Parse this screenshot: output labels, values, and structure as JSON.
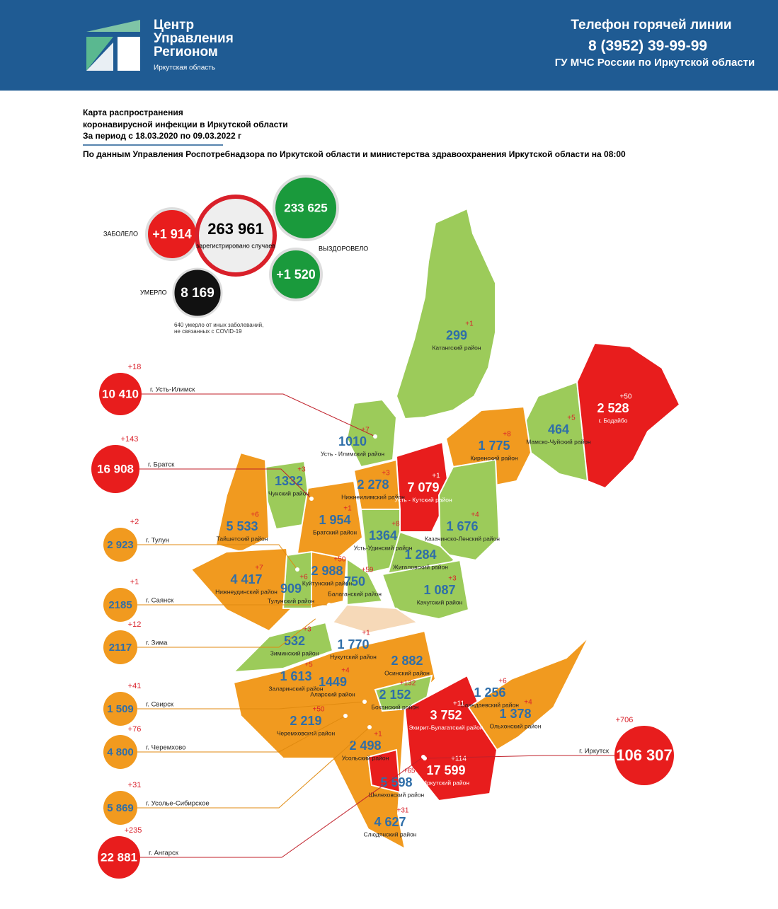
{
  "header": {
    "logo_lines": [
      "Центр",
      "Управления",
      "Регионом"
    ],
    "logo_sub": "Иркутская область",
    "hotline_title": "Телефон горячей линии",
    "hotline_phone": "8 (3952) 39-99-99",
    "hotline_org": "ГУ МЧС России по Иркутской области"
  },
  "intro": {
    "title_lines": [
      "Карта распространения",
      "коронавирусной инфекции в Иркутской области",
      "За период с 18.03.2020 по 09.03.2022 г"
    ],
    "source": "По данным Управления Роспотребнадзора по Иркутской области и министерства здравоохранения Иркутской области на 08:00"
  },
  "summary": {
    "sick_label": "ЗАБОЛЕЛО",
    "sick_delta": "+1 914",
    "total": "263 961",
    "total_caption": "зарегистрировано случаев",
    "recovered": "233 625",
    "recovered_label": "ВЫЗДОРОВЕЛО",
    "recovered_delta": "+1 520",
    "died_label": "УМЕРЛО",
    "died": "8 169",
    "died_note": "640 умерло от иных заболеваний, не связанных с COVID-19"
  },
  "regions": [
    {
      "name": "Катангский район",
      "value": "299",
      "delta": "+1"
    },
    {
      "name": "г. Бодайбо",
      "value": "2 528",
      "delta": "+50"
    },
    {
      "name": "Мамско-Чуйский район",
      "value": "464",
      "delta": "+5"
    },
    {
      "name": "Киренский район",
      "value": "1 775",
      "delta": "+8"
    },
    {
      "name": "Усть - Илимский район",
      "value": "1010",
      "delta": "+7"
    },
    {
      "name": "Нижнеилимский район",
      "value": "2 278",
      "delta": "+3"
    },
    {
      "name": "Усть - Кутский район",
      "value": "7 079",
      "delta": "+1"
    },
    {
      "name": "Чунский район",
      "value": "1332",
      "delta": "+3"
    },
    {
      "name": "Братский район",
      "value": "1 954",
      "delta": "+1"
    },
    {
      "name": "Тайшетский район",
      "value": "5 533",
      "delta": "+6"
    },
    {
      "name": "Казачинско-Ленский район",
      "value": "1 676",
      "delta": "+4"
    },
    {
      "name": "Усть-Удинский район",
      "value": "1364",
      "delta": "+8"
    },
    {
      "name": "Жигаловский район",
      "value": "1 284"
    },
    {
      "name": "Нижнеудинский район",
      "value": "4 417",
      "delta": "+7"
    },
    {
      "name": "Куйтунский район",
      "value": "2 988",
      "delta": "+50"
    },
    {
      "name": "Тулунский район",
      "value": "909",
      "delta": "+6"
    },
    {
      "name": "Балаганский район",
      "value": "750",
      "delta": "+59"
    },
    {
      "name": "Качугский район",
      "value": "1 087",
      "delta": "+3"
    },
    {
      "name": "Зиминский район",
      "value": "532",
      "delta": "+3"
    },
    {
      "name": "Нукутский район",
      "value": "1 770",
      "delta": "+1"
    },
    {
      "name": "Осинский район",
      "value": "2 882"
    },
    {
      "name": "Заларинский район",
      "value": "1 613",
      "delta": "+5"
    },
    {
      "name": "Аларский район",
      "value": "1449",
      "delta": "+4"
    },
    {
      "name": "Боханский район",
      "value": "2 152",
      "delta": "+132"
    },
    {
      "name": "Баяндаевский район",
      "value": "1 256",
      "delta": "+6"
    },
    {
      "name": "Эхирит-Булагатский район",
      "value": "3 752",
      "delta": "+11"
    },
    {
      "name": "Ольхонский район",
      "value": "1 378",
      "delta": "+4"
    },
    {
      "name": "Черемховский район",
      "value": "2 219",
      "delta": "+50"
    },
    {
      "name": "Усольский район",
      "value": "2 498",
      "delta": "+1"
    },
    {
      "name": "Иркутский район",
      "value": "17 599",
      "delta": "+114"
    },
    {
      "name": "Шелеховский район",
      "value": "5 598",
      "delta": "+65"
    },
    {
      "name": "Слюдянский район",
      "value": "4 627",
      "delta": "+31"
    }
  ],
  "cities": [
    {
      "name": "г. Усть-Илимск",
      "value": "10 410",
      "delta": "+18"
    },
    {
      "name": "г. Братск",
      "value": "16 908",
      "delta": "+143"
    },
    {
      "name": "г. Тулун",
      "value": "2 923",
      "delta": "+2"
    },
    {
      "name": "г. Саянск",
      "value": "2185",
      "delta": "+1"
    },
    {
      "name": "г. Зима",
      "value": "2117",
      "delta": "+12"
    },
    {
      "name": "г. Свирск",
      "value": "1 509",
      "delta": "+41"
    },
    {
      "name": "г. Черемхово",
      "value": "4 800",
      "delta": "+76"
    },
    {
      "name": "г. Усолье-Сибирское",
      "value": "5 869",
      "delta": "+31"
    },
    {
      "name": "г. Ангарск",
      "value": "22 881",
      "delta": "+235"
    },
    {
      "name": "г. Иркутск",
      "value": "106 307",
      "delta": "+706"
    }
  ]
}
